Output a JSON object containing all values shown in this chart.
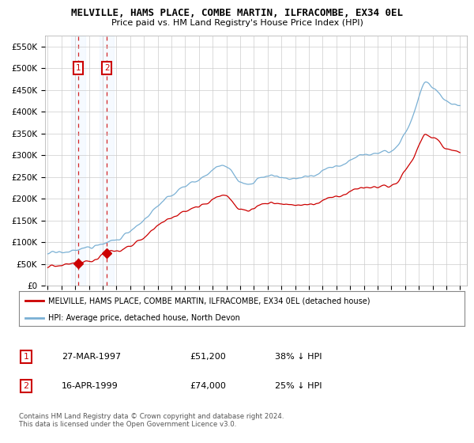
{
  "title": "MELVILLE, HAMS PLACE, COMBE MARTIN, ILFRACOMBE, EX34 0EL",
  "subtitle": "Price paid vs. HM Land Registry's House Price Index (HPI)",
  "ylim": [
    0,
    575000
  ],
  "yticks": [
    0,
    50000,
    100000,
    150000,
    200000,
    250000,
    300000,
    350000,
    400000,
    450000,
    500000,
    550000
  ],
  "ytick_labels": [
    "£0",
    "£50K",
    "£100K",
    "£150K",
    "£200K",
    "£250K",
    "£300K",
    "£350K",
    "£400K",
    "£450K",
    "£500K",
    "£550K"
  ],
  "sale1_date": 1997.22,
  "sale1_price": 51200,
  "sale2_date": 1999.29,
  "sale2_price": 74000,
  "legend_line1": "MELVILLE, HAMS PLACE, COMBE MARTIN, ILFRACOMBE, EX34 0EL (detached house)",
  "legend_line2": "HPI: Average price, detached house, North Devon",
  "table_row1": [
    "1",
    "27-MAR-1997",
    "£51,200",
    "38% ↓ HPI"
  ],
  "table_row2": [
    "2",
    "16-APR-1999",
    "£74,000",
    "25% ↓ HPI"
  ],
  "footer": "Contains HM Land Registry data © Crown copyright and database right 2024.\nThis data is licensed under the Open Government Licence v3.0.",
  "price_color": "#cc0000",
  "hpi_color": "#7ab0d4",
  "plot_bg": "#ffffff",
  "grid_color": "#cccccc",
  "shade_color": "#ddeeff"
}
